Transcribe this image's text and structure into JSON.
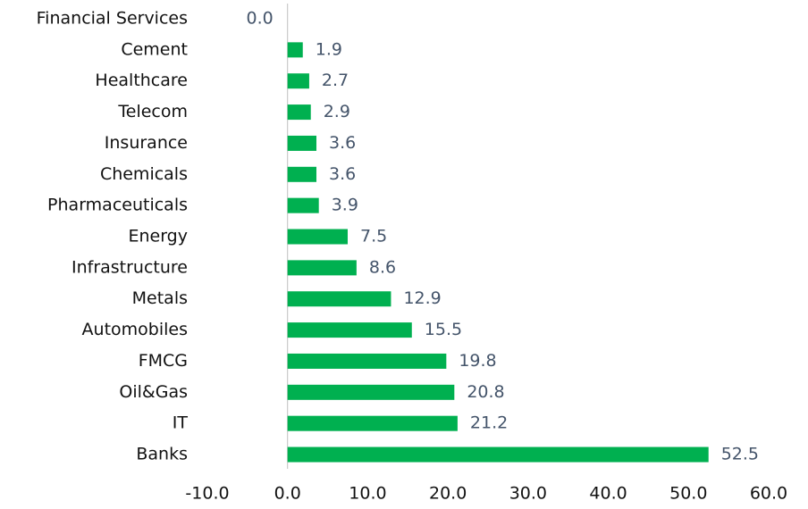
{
  "chart_data": {
    "type": "bar",
    "orientation": "horizontal",
    "categories": [
      "Financial Services",
      "Cement",
      "Healthcare",
      "Telecom",
      "Insurance",
      "Chemicals",
      "Pharmaceuticals",
      "Energy",
      "Infrastructure",
      "Metals",
      "Automobiles",
      "FMCG",
      "Oil&Gas",
      "IT",
      "Banks"
    ],
    "values": [
      0.0,
      1.9,
      2.7,
      2.9,
      3.6,
      3.6,
      3.9,
      7.5,
      8.6,
      12.9,
      15.5,
      19.8,
      20.8,
      21.2,
      52.5
    ],
    "value_labels": [
      "0.0",
      "1.9",
      "2.7",
      "2.9",
      "3.6",
      "3.6",
      "3.9",
      "7.5",
      "8.6",
      "12.9",
      "15.5",
      "19.8",
      "20.8",
      "21.2",
      "52.5"
    ],
    "color": "#00b050",
    "xlim": [
      -10,
      60
    ],
    "xticks": [
      {
        "value": -10,
        "label": "-10.0"
      },
      {
        "value": 0,
        "label": "0.0"
      },
      {
        "value": 10,
        "label": "10.0"
      },
      {
        "value": 20,
        "label": "20.0"
      },
      {
        "value": 30,
        "label": "30.0"
      },
      {
        "value": 40,
        "label": "40.0"
      },
      {
        "value": 50,
        "label": "50.0"
      },
      {
        "value": 60,
        "label": "60.0"
      }
    ],
    "grid": false
  }
}
